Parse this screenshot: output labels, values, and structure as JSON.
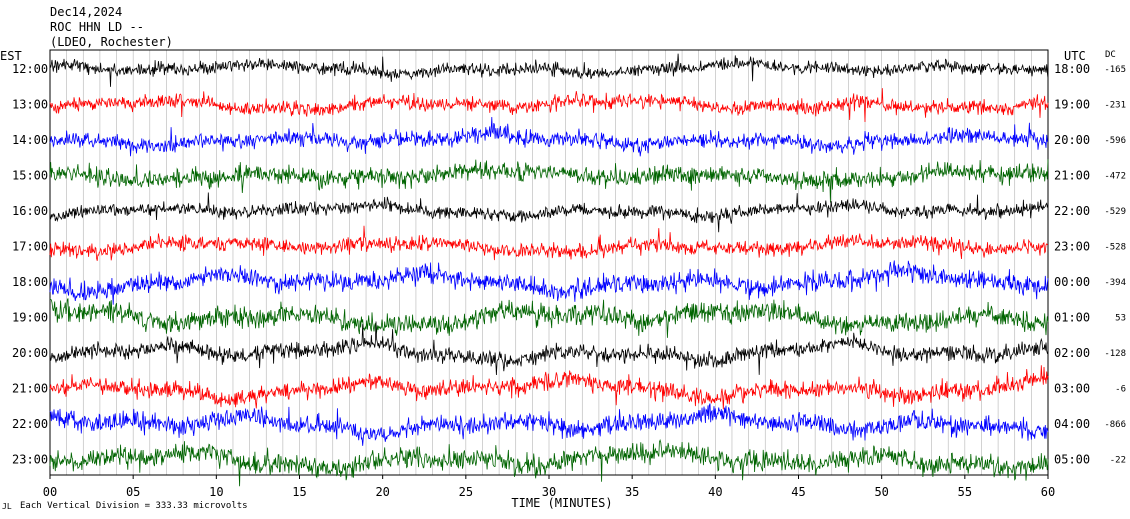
{
  "header": {
    "date": "Dec14,2024",
    "station": "ROC HHN LD --",
    "network": "(LDEO, Rochester)"
  },
  "left_zone_label": "EST",
  "right_zone_label": "UTC",
  "dc_label": "DC",
  "footer": {
    "xlabel": "TIME (MINUTES)",
    "scale_note": "Each Vertical Division =  333.33 microvolts",
    "corner_mark": "JL"
  },
  "chart_data": {
    "type": "line",
    "title": "ROC HHN LD --",
    "xlabel": "TIME (MINUTES)",
    "ylabel": "",
    "xlim": [
      0,
      60
    ],
    "x_ticks": [
      "00",
      "05",
      "10",
      "15",
      "20",
      "25",
      "30",
      "35",
      "40",
      "45",
      "50",
      "55",
      "60"
    ],
    "grid": "vertical lines every minute",
    "trace_colors": [
      "#000000",
      "#ff0000",
      "#0000ff",
      "#006400"
    ],
    "series": [
      {
        "est": "12:00",
        "utc": "18:00",
        "dc": "-165"
      },
      {
        "est": "13:00",
        "utc": "19:00",
        "dc": "-231"
      },
      {
        "est": "14:00",
        "utc": "20:00",
        "dc": "-596"
      },
      {
        "est": "15:00",
        "utc": "21:00",
        "dc": "-472"
      },
      {
        "est": "16:00",
        "utc": "22:00",
        "dc": "-529"
      },
      {
        "est": "17:00",
        "utc": "23:00",
        "dc": "-528"
      },
      {
        "est": "18:00",
        "utc": "00:00",
        "dc": "-394"
      },
      {
        "est": "19:00",
        "utc": "01:00",
        "dc": "53"
      },
      {
        "est": "20:00",
        "utc": "02:00",
        "dc": "-128"
      },
      {
        "est": "21:00",
        "utc": "03:00",
        "dc": "-6"
      },
      {
        "est": "22:00",
        "utc": "04:00",
        "dc": "-866"
      },
      {
        "est": "23:00",
        "utc": "05:00",
        "dc": "-22"
      }
    ]
  }
}
